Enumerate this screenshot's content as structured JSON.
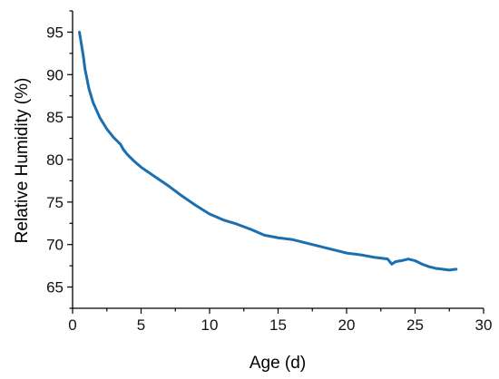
{
  "chart_data": {
    "type": "line",
    "title": "",
    "xlabel": "Age (d)",
    "ylabel": "Relative Humidity (%)",
    "xlim": [
      0,
      30
    ],
    "ylim": [
      62.5,
      97.5
    ],
    "x_ticks": [
      0,
      5,
      10,
      15,
      20,
      25,
      30
    ],
    "y_ticks": [
      65,
      70,
      75,
      80,
      85,
      90,
      95
    ],
    "x_tick_labels": [
      "0",
      "5",
      "10",
      "15",
      "20",
      "25",
      "30"
    ],
    "y_tick_labels": [
      "65",
      "70",
      "75",
      "80",
      "85",
      "90",
      "95"
    ],
    "grid": false,
    "legend": "none",
    "line_color": "#1a6fb0",
    "series": [
      {
        "x": [
          0.5,
          0.6,
          0.7,
          0.8,
          0.9,
          1.0,
          1.2,
          1.5,
          2.0,
          2.5,
          3.0,
          3.5,
          3.7,
          4.0,
          4.5,
          5.0,
          6.0,
          7.0,
          8.0,
          9.0,
          10.0,
          11.0,
          12.0,
          13.0,
          14.0,
          15.0,
          16.0,
          17.0,
          18.0,
          19.0,
          20.0,
          21.0,
          22.0,
          23.0,
          23.3,
          23.6,
          24.0,
          24.5,
          25.0,
          25.5,
          26.0,
          26.5,
          27.0,
          27.5,
          28.0
        ],
        "y": [
          95.0,
          94.0,
          93.0,
          92.0,
          90.7,
          89.9,
          88.3,
          86.7,
          84.9,
          83.6,
          82.6,
          81.8,
          81.2,
          80.6,
          79.8,
          79.1,
          78.0,
          76.9,
          75.7,
          74.6,
          73.6,
          72.9,
          72.4,
          71.8,
          71.1,
          70.8,
          70.6,
          70.2,
          69.8,
          69.4,
          69.0,
          68.8,
          68.5,
          68.3,
          67.7,
          68.0,
          68.1,
          68.3,
          68.1,
          67.7,
          67.4,
          67.2,
          67.1,
          67.0,
          67.1
        ]
      }
    ]
  }
}
